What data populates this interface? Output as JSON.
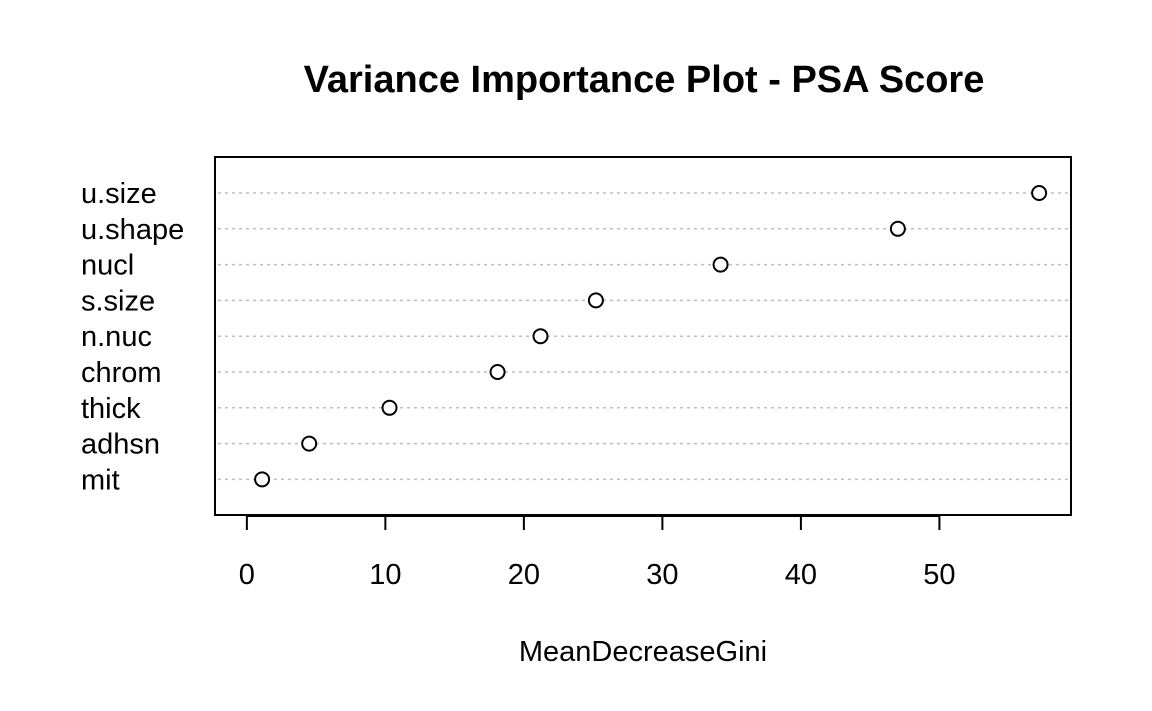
{
  "chart_data": {
    "type": "scatter",
    "title": "Variance Importance Plot - PSA Score",
    "xlabel": "MeanDecreaseGini",
    "ylabel": "",
    "categories": [
      "u.size",
      "u.shape",
      "nucl",
      "s.size",
      "n.nuc",
      "chrom",
      "thick",
      "adhsn",
      "mit"
    ],
    "values": [
      57.2,
      47.0,
      34.2,
      25.2,
      21.2,
      18.1,
      10.3,
      4.5,
      1.1
    ],
    "x_ticks": [
      0,
      10,
      20,
      30,
      40,
      50
    ],
    "xlim": [
      -2.3,
      59.5
    ],
    "grid": "dotted horizontal lines per category",
    "marker": "open circle",
    "colors": {
      "gridline": "#bebebe",
      "marker_stroke": "#000000",
      "marker_fill": "#ffffff",
      "frame": "#000000"
    }
  }
}
